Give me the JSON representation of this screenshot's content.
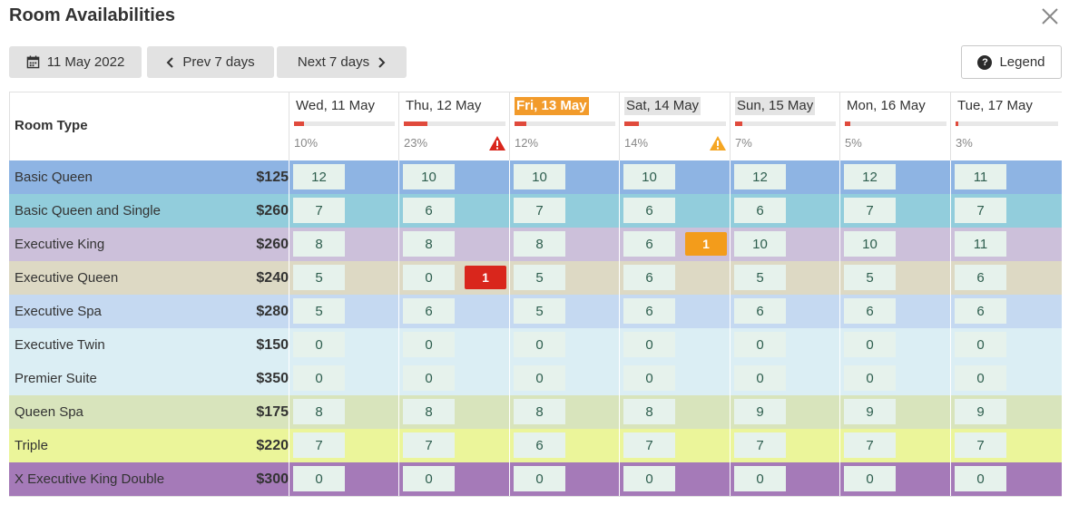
{
  "title": "Room Availabilities",
  "toolbar": {
    "date_label": "11 May 2022",
    "prev_label": "Prev 7 days",
    "next_label": "Next 7 days",
    "legend_label": "Legend"
  },
  "header": {
    "room_type_label": "Room Type"
  },
  "days": [
    {
      "label": "Wed, 11 May",
      "occupancy_pct": "10%",
      "occupancy": 0.1,
      "style": "normal",
      "warning": null
    },
    {
      "label": "Thu, 12 May",
      "occupancy_pct": "23%",
      "occupancy": 0.23,
      "style": "normal",
      "warning": "red"
    },
    {
      "label": "Fri, 13 May",
      "occupancy_pct": "12%",
      "occupancy": 0.12,
      "style": "today",
      "warning": null
    },
    {
      "label": "Sat, 14 May",
      "occupancy_pct": "14%",
      "occupancy": 0.14,
      "style": "weekend",
      "warning": "orange"
    },
    {
      "label": "Sun, 15 May",
      "occupancy_pct": "7%",
      "occupancy": 0.07,
      "style": "weekend",
      "warning": null
    },
    {
      "label": "Mon, 16 May",
      "occupancy_pct": "5%",
      "occupancy": 0.05,
      "style": "normal",
      "warning": null
    },
    {
      "label": "Tue, 17 May",
      "occupancy_pct": "3%",
      "occupancy": 0.03,
      "style": "normal",
      "warning": null
    }
  ],
  "rooms": [
    {
      "name": "Basic Queen",
      "price": "$125",
      "color": "#8eb4e3",
      "counts": [
        "12",
        "10",
        "10",
        "10",
        "12",
        "12",
        "11"
      ]
    },
    {
      "name": "Basic Queen and Single",
      "price": "$260",
      "color": "#92cddc",
      "counts": [
        "7",
        "6",
        "7",
        "6",
        "6",
        "7",
        "7"
      ]
    },
    {
      "name": "Executive King",
      "price": "$260",
      "color": "#ccc0da",
      "counts": [
        "8",
        "8",
        "8",
        "6",
        "10",
        "10",
        "11"
      ]
    },
    {
      "name": "Executive Queen",
      "price": "$240",
      "color": "#ddd9c4",
      "counts": [
        "5",
        "0",
        "5",
        "6",
        "5",
        "5",
        "6"
      ]
    },
    {
      "name": "Executive Spa",
      "price": "$280",
      "color": "#c5d9f1",
      "counts": [
        "5",
        "6",
        "5",
        "6",
        "6",
        "6",
        "6"
      ]
    },
    {
      "name": "Executive Twin",
      "price": "$150",
      "color": "#dbeef4",
      "counts": [
        "0",
        "0",
        "0",
        "0",
        "0",
        "0",
        "0"
      ]
    },
    {
      "name": "Premier Suite",
      "price": "$350",
      "color": "#dbeef4",
      "counts": [
        "0",
        "0",
        "0",
        "0",
        "0",
        "0",
        "0"
      ]
    },
    {
      "name": "Queen Spa",
      "price": "$175",
      "color": "#d8e4bc",
      "counts": [
        "8",
        "8",
        "8",
        "8",
        "9",
        "9",
        "9"
      ]
    },
    {
      "name": "Triple",
      "price": "$220",
      "color": "#ebf59a",
      "counts": [
        "7",
        "7",
        "6",
        "7",
        "7",
        "7",
        "7"
      ]
    },
    {
      "name": "X Executive King Double",
      "price": "$300",
      "color": "#a57ab8",
      "counts": [
        "0",
        "0",
        "0",
        "0",
        "0",
        "0",
        "0"
      ]
    }
  ],
  "alerts": [
    {
      "room": 3,
      "day": 1,
      "value": "1",
      "color": "#d9261c"
    },
    {
      "room": 2,
      "day": 3,
      "value": "1",
      "color": "#f39c1b"
    }
  ],
  "icons": {
    "close": "close-icon",
    "calendar": "calendar-icon",
    "prev": "chevron-left-icon",
    "next": "chevron-right-icon",
    "legend": "help-icon",
    "warning": "warning-icon"
  }
}
